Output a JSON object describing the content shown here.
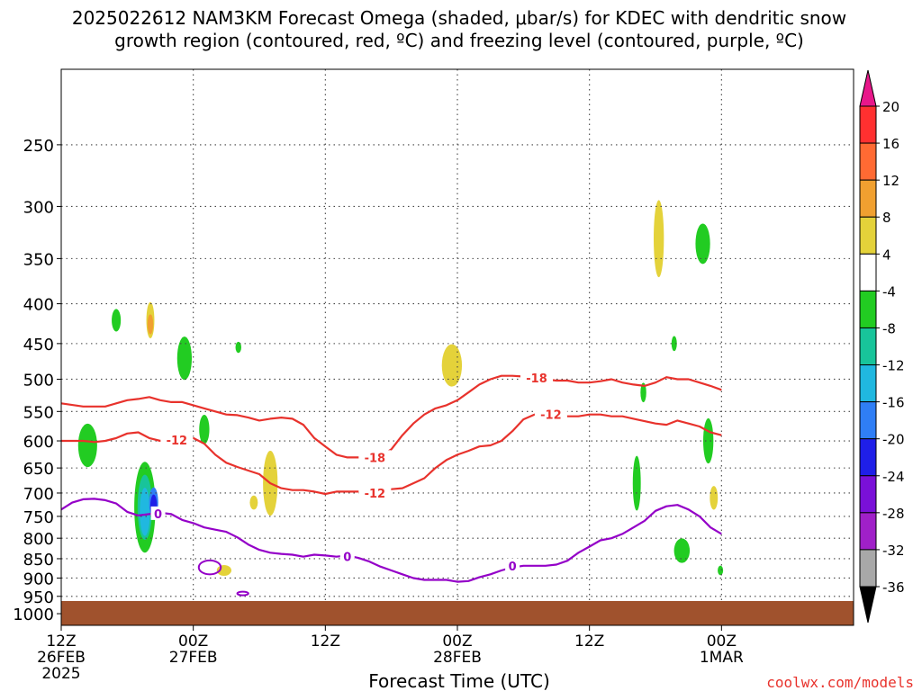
{
  "title": {
    "line1": "2025022612 NAM3KM Forecast Omega (shaded, μbar/s) for KDEC with dendritic snow",
    "line2": "growth region (contoured, red, ºC) and freezing level (contoured, purple, ºC)"
  },
  "credit": "coolwx.com/models",
  "colors": {
    "contour_dgz": "#e8322c",
    "contour_freezing": "#9400c8",
    "ground": "#a0522d",
    "gridline": "#444444"
  },
  "chart_data": {
    "type": "heatmap",
    "subtype": "time-height cross section",
    "xlabel": "Forecast Time (UTC)",
    "ylabel": "",
    "y_scale": "log-pressure (inverted)",
    "ylim": [
      1035,
      200
    ],
    "xlim": [
      0,
      72
    ],
    "grid": true,
    "legend": "colorbar-right",
    "x_ticks": [
      {
        "hour": 0,
        "label": "12Z",
        "line2": "26FEB",
        "line3": "2025"
      },
      {
        "hour": 12,
        "label": "00Z",
        "line2": "27FEB",
        "line3": ""
      },
      {
        "hour": 24,
        "label": "12Z",
        "line2": "",
        "line3": ""
      },
      {
        "hour": 36,
        "label": "00Z",
        "line2": "28FEB",
        "line3": ""
      },
      {
        "hour": 48,
        "label": "12Z",
        "line2": "",
        "line3": ""
      },
      {
        "hour": 60,
        "label": "00Z",
        "line2": "1MAR",
        "line3": ""
      }
    ],
    "y_ticks": [
      "250",
      "300",
      "350",
      "400",
      "450",
      "500",
      "550",
      "600",
      "650",
      "700",
      "750",
      "800",
      "850",
      "900",
      "950",
      "1000"
    ],
    "colorbar": {
      "labels": [
        "20",
        "16",
        "12",
        "8",
        "4",
        "-4",
        "-8",
        "-12",
        "-16",
        "-20",
        "-24",
        "-28",
        "-32",
        "-36"
      ],
      "bins": [
        {
          "lo": 16,
          "hi": 20,
          "color": "#ff3030"
        },
        {
          "lo": 12,
          "hi": 16,
          "color": "#ff6a33"
        },
        {
          "lo": 8,
          "hi": 12,
          "color": "#f0a030"
        },
        {
          "lo": 4,
          "hi": 8,
          "color": "#e4d23a"
        },
        {
          "lo": -4,
          "hi": 4,
          "color": "#ffffff"
        },
        {
          "lo": -8,
          "hi": -4,
          "color": "#22cc22"
        },
        {
          "lo": -12,
          "hi": -8,
          "color": "#18c49a"
        },
        {
          "lo": -16,
          "hi": -12,
          "color": "#20b8e0"
        },
        {
          "lo": -20,
          "hi": -16,
          "color": "#2f7ef5"
        },
        {
          "lo": -24,
          "hi": -20,
          "color": "#1f1fe8"
        },
        {
          "lo": -28,
          "hi": -24,
          "color": "#7a10d8"
        },
        {
          "lo": -32,
          "hi": -28,
          "color": "#a020c8"
        },
        {
          "lo": -36,
          "hi": -32,
          "color": "#a8a8a8"
        }
      ],
      "top_arrow_color": "#e8178a",
      "bottom_arrow_color": "#000000"
    },
    "series": [
      {
        "kind": "contour",
        "color": "#e8322c",
        "points": [
          [
            0,
            537
          ],
          [
            2,
            542
          ],
          [
            4,
            542
          ],
          [
            5,
            537
          ],
          [
            6,
            532
          ],
          [
            7,
            530
          ],
          [
            8,
            527
          ],
          [
            9,
            532
          ],
          [
            10,
            535
          ],
          [
            11,
            535
          ],
          [
            12,
            540
          ],
          [
            13,
            545
          ],
          [
            14,
            550
          ],
          [
            15,
            555
          ],
          [
            16,
            556
          ],
          [
            17,
            560
          ],
          [
            18,
            565
          ],
          [
            19,
            562
          ],
          [
            20,
            560
          ],
          [
            21,
            562
          ],
          [
            22,
            572
          ],
          [
            23,
            595
          ],
          [
            24,
            610
          ],
          [
            25,
            625
          ],
          [
            26,
            630
          ],
          [
            27,
            630
          ],
          [
            28,
            630
          ],
          [
            29,
            628
          ],
          [
            30,
            615
          ],
          [
            31,
            590
          ],
          [
            32,
            570
          ],
          [
            33,
            555
          ],
          [
            34,
            545
          ],
          [
            35,
            540
          ],
          [
            36,
            532
          ],
          [
            37,
            520
          ],
          [
            38,
            508
          ],
          [
            39,
            500
          ],
          [
            40,
            495
          ],
          [
            41,
            495
          ],
          [
            42,
            496
          ],
          [
            43,
            498
          ],
          [
            44,
            500
          ],
          [
            45,
            502
          ],
          [
            46,
            502
          ],
          [
            47,
            505
          ],
          [
            48,
            505
          ],
          [
            49,
            503
          ],
          [
            50,
            500
          ],
          [
            51,
            505
          ],
          [
            52,
            508
          ],
          [
            53,
            510
          ],
          [
            54,
            505
          ],
          [
            55,
            497
          ],
          [
            56,
            500
          ],
          [
            57,
            500
          ],
          [
            58,
            505
          ],
          [
            59,
            510
          ],
          [
            60,
            516
          ]
        ]
      },
      {
        "kind": "contour",
        "color": "#e8322c",
        "points": [
          [
            0,
            600
          ],
          [
            1,
            600
          ],
          [
            2,
            600
          ],
          [
            3,
            602
          ],
          [
            4,
            600
          ],
          [
            5,
            595
          ],
          [
            6,
            587
          ],
          [
            7,
            585
          ],
          [
            8,
            595
          ],
          [
            9,
            600
          ],
          [
            10,
            595
          ],
          [
            11,
            592
          ],
          [
            12,
            595
          ],
          [
            13,
            605
          ],
          [
            14,
            625
          ],
          [
            15,
            640
          ],
          [
            16,
            648
          ],
          [
            17,
            655
          ],
          [
            18,
            662
          ],
          [
            19,
            680
          ],
          [
            20,
            690
          ],
          [
            21,
            694
          ],
          [
            22,
            694
          ],
          [
            23,
            697
          ],
          [
            24,
            702
          ],
          [
            25,
            697
          ],
          [
            26,
            697
          ],
          [
            27,
            697
          ],
          [
            28,
            700
          ],
          [
            29,
            697
          ],
          [
            30,
            692
          ],
          [
            31,
            690
          ],
          [
            32,
            680
          ],
          [
            33,
            670
          ],
          [
            34,
            650
          ],
          [
            35,
            635
          ],
          [
            36,
            625
          ],
          [
            37,
            618
          ],
          [
            38,
            610
          ],
          [
            39,
            608
          ],
          [
            40,
            600
          ],
          [
            41,
            583
          ],
          [
            42,
            563
          ],
          [
            43,
            555
          ],
          [
            44,
            555
          ],
          [
            45,
            555
          ],
          [
            46,
            558
          ],
          [
            47,
            558
          ],
          [
            48,
            555
          ],
          [
            49,
            555
          ],
          [
            50,
            558
          ],
          [
            51,
            558
          ],
          [
            52,
            562
          ],
          [
            53,
            566
          ],
          [
            54,
            570
          ],
          [
            55,
            572
          ],
          [
            56,
            565
          ],
          [
            57,
            570
          ],
          [
            58,
            575
          ],
          [
            59,
            585
          ],
          [
            60,
            590
          ]
        ]
      },
      {
        "kind": "contour",
        "color": "#9400c8",
        "points": [
          [
            0,
            735
          ],
          [
            1,
            720
          ],
          [
            2,
            713
          ],
          [
            3,
            712
          ],
          [
            4,
            715
          ],
          [
            5,
            722
          ],
          [
            6,
            740
          ],
          [
            7,
            748
          ],
          [
            8,
            745
          ],
          [
            9,
            742
          ],
          [
            10,
            745
          ],
          [
            11,
            758
          ],
          [
            12,
            765
          ],
          [
            13,
            775
          ],
          [
            14,
            780
          ],
          [
            15,
            785
          ],
          [
            16,
            798
          ],
          [
            17,
            815
          ],
          [
            18,
            828
          ],
          [
            19,
            835
          ],
          [
            20,
            838
          ],
          [
            21,
            840
          ],
          [
            22,
            845
          ],
          [
            23,
            840
          ],
          [
            24,
            842
          ],
          [
            25,
            845
          ],
          [
            26,
            842
          ],
          [
            27,
            848
          ],
          [
            28,
            857
          ],
          [
            29,
            870
          ],
          [
            30,
            880
          ],
          [
            31,
            890
          ],
          [
            32,
            900
          ],
          [
            33,
            905
          ],
          [
            34,
            905
          ],
          [
            35,
            905
          ],
          [
            36,
            910
          ],
          [
            37,
            908
          ],
          [
            38,
            898
          ],
          [
            39,
            890
          ],
          [
            40,
            880
          ],
          [
            41,
            872
          ],
          [
            42,
            868
          ],
          [
            43,
            868
          ],
          [
            44,
            868
          ],
          [
            45,
            865
          ],
          [
            46,
            855
          ],
          [
            47,
            835
          ],
          [
            48,
            820
          ],
          [
            49,
            805
          ],
          [
            50,
            800
          ],
          [
            51,
            790
          ],
          [
            52,
            775
          ],
          [
            53,
            760
          ],
          [
            54,
            738
          ],
          [
            55,
            728
          ],
          [
            56,
            725
          ],
          [
            57,
            735
          ],
          [
            58,
            750
          ],
          [
            59,
            775
          ],
          [
            60,
            790
          ]
        ]
      }
    ],
    "contour_labels": [
      {
        "text": "-18",
        "hour": 28.5,
        "p": 630
      },
      {
        "text": "-12",
        "hour": 28.5,
        "p": 700
      },
      {
        "text": "-18",
        "hour": 43.2,
        "p": 498
      },
      {
        "text": "-12",
        "hour": 44.5,
        "p": 555
      },
      {
        "text": "-12",
        "hour": 10.5,
        "p": 598
      },
      {
        "text": "0",
        "hour": 8.8,
        "p": 744
      },
      {
        "text": "0",
        "hour": 26,
        "p": 845
      },
      {
        "text": "0",
        "hour": 41,
        "p": 868
      }
    ],
    "omega_features": [
      {
        "value": -6,
        "hour": 2.4,
        "p": 608,
        "dh": 1.4,
        "dp": 78
      },
      {
        "value": -6,
        "hour": 5.0,
        "p": 420,
        "dh": 0.5,
        "dp": 28
      },
      {
        "value": -6,
        "hour": 7.6,
        "p": 730,
        "dh": 1.6,
        "dp": 195
      },
      {
        "value": -10,
        "hour": 7.6,
        "p": 730,
        "dh": 1.0,
        "dp": 140
      },
      {
        "value": -14,
        "hour": 7.6,
        "p": 740,
        "dh": 0.6,
        "dp": 105
      },
      {
        "value": -18,
        "hour": 8.4,
        "p": 720,
        "dh": 0.5,
        "dp": 65
      },
      {
        "value": -22,
        "hour": 8.4,
        "p": 730,
        "dh": 0.3,
        "dp": 55
      },
      {
        "value": 6,
        "hour": 8.1,
        "p": 420,
        "dh": 0.4,
        "dp": 45
      },
      {
        "value": 10,
        "hour": 8.1,
        "p": 425,
        "dh": 0.2,
        "dp": 25
      },
      {
        "value": -6,
        "hour": 11.2,
        "p": 470,
        "dh": 1.0,
        "dp": 60
      },
      {
        "value": -6,
        "hour": 13.0,
        "p": 580,
        "dh": 0.6,
        "dp": 50
      },
      {
        "value": -6,
        "hour": 16.1,
        "p": 455,
        "dh": 0.2,
        "dp": 15
      },
      {
        "value": 6,
        "hour": 14.8,
        "p": 880,
        "dh": 1.0,
        "dp": 28
      },
      {
        "value": 6,
        "hour": 17.5,
        "p": 720,
        "dh": 0.4,
        "dp": 30
      },
      {
        "value": 6,
        "hour": 19.0,
        "p": 680,
        "dh": 1.0,
        "dp": 130
      },
      {
        "value": 6,
        "hour": 35.5,
        "p": 480,
        "dh": 1.5,
        "dp": 60
      },
      {
        "value": 6,
        "hour": 54.3,
        "p": 330,
        "dh": 0.6,
        "dp": 75
      },
      {
        "value": -6,
        "hour": 52.9,
        "p": 520,
        "dh": 0.2,
        "dp": 30
      },
      {
        "value": -6,
        "hour": 52.3,
        "p": 680,
        "dh": 0.4,
        "dp": 110
      },
      {
        "value": -6,
        "hour": 56.4,
        "p": 830,
        "dh": 1.1,
        "dp": 60
      },
      {
        "value": -6,
        "hour": 55.7,
        "p": 450,
        "dh": 0.1,
        "dp": 20
      },
      {
        "value": -6,
        "hour": 58.3,
        "p": 335,
        "dh": 1.0,
        "dp": 40
      },
      {
        "value": -6,
        "hour": 58.8,
        "p": 600,
        "dh": 0.6,
        "dp": 80
      },
      {
        "value": 6,
        "hour": 59.3,
        "p": 710,
        "dh": 0.4,
        "dp": 50
      },
      {
        "value": -6,
        "hour": 59.9,
        "p": 880,
        "dh": 0.1,
        "dp": 25
      }
    ]
  }
}
